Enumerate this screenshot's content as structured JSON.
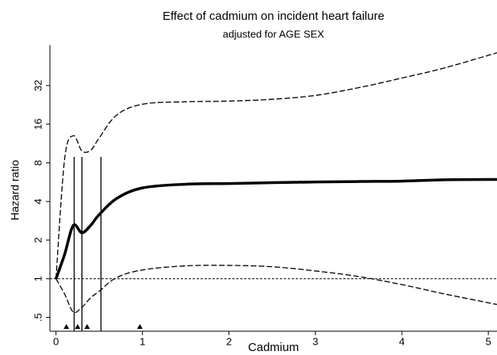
{
  "chart_data": {
    "type": "line",
    "title": "Effect of cadmium on incident heart failure",
    "subtitle": "adjusted for AGE SEX",
    "x_label": "Cadmium",
    "y_label": "Hazard ratio",
    "y_scale": "log",
    "x": [
      0,
      0.1,
      0.2,
      0.3,
      0.4,
      0.5,
      0.7,
      1,
      1.5,
      2,
      2.5,
      3,
      3.5,
      4,
      4.5,
      5.1
    ],
    "series": [
      {
        "color": "#000000",
        "style": "solid",
        "width": 3.5,
        "values": [
          1,
          1.55,
          2.6,
          2.28,
          2.6,
          3.16,
          4.21,
          5.1,
          5.45,
          5.52,
          5.6,
          5.67,
          5.72,
          5.76,
          5.9,
          5.93
        ]
      },
      {
        "color": "#000000",
        "style": "dashed",
        "width": 1.3,
        "values": [
          1,
          8.6,
          13,
          9.9,
          10,
          12.5,
          18.8,
          22.9,
          23.9,
          24.2,
          25,
          26.8,
          30.8,
          36.6,
          44,
          57.6
        ]
      },
      {
        "color": "#000000",
        "style": "dashed",
        "width": 1.3,
        "values": [
          1,
          0.76,
          0.55,
          0.6,
          0.71,
          0.8,
          1.02,
          1.17,
          1.26,
          1.27,
          1.24,
          1.15,
          1.04,
          0.9,
          0.76,
          0.63
        ]
      }
    ],
    "reference_line": 1,
    "knots": [
      0.21,
      0.3,
      0.52
    ],
    "markers": [
      0.12,
      0.25,
      0.36,
      0.97
    ],
    "xlim": [
      -0.07,
      5.1
    ],
    "ylim": [
      0.39,
      66
    ],
    "xticks": [
      0,
      1,
      2,
      3,
      4,
      5
    ],
    "yticks": [
      {
        "value": 0.5,
        "label": ".5"
      },
      1,
      2,
      4,
      8,
      16,
      32
    ]
  }
}
